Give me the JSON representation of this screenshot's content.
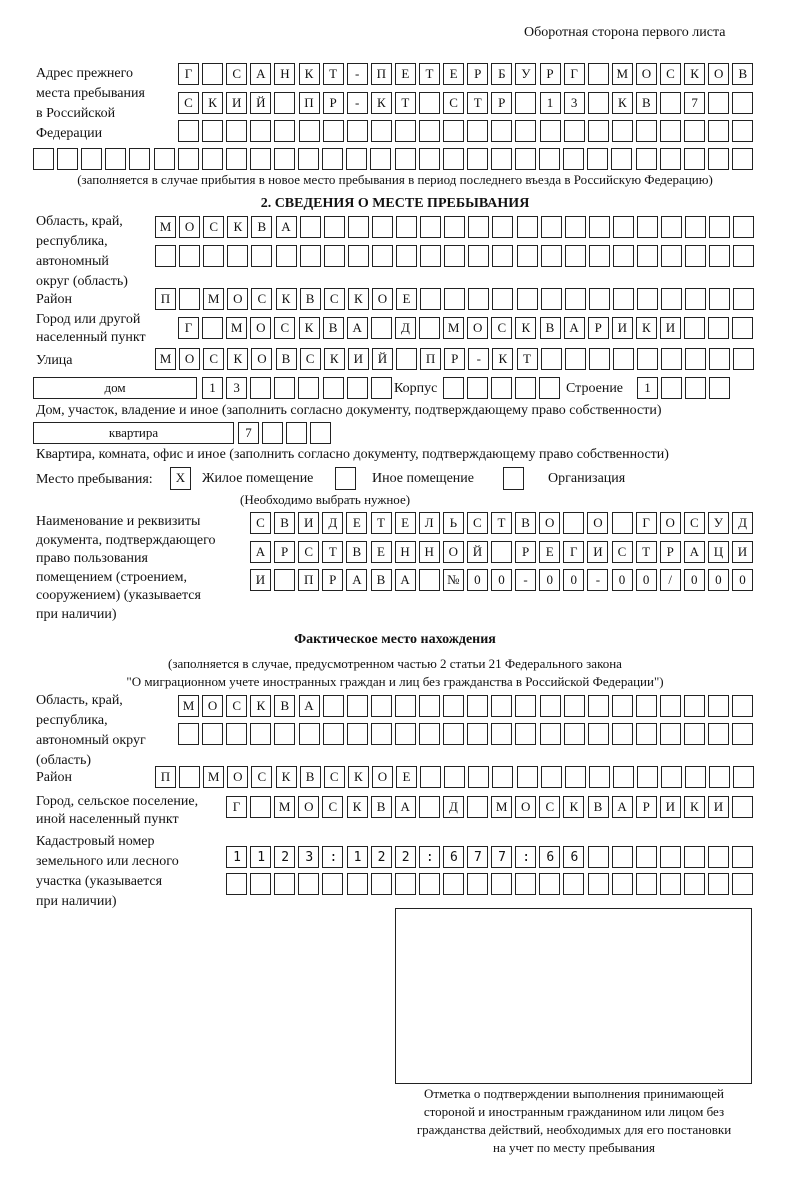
{
  "header": {
    "side_label": "Оборотная сторона первого листа"
  },
  "prev_address": {
    "label": [
      "Адрес прежнего",
      "места пребывания",
      "в Российской",
      "Федерации"
    ],
    "rows": [
      "Г САНКТ-ПЕТЕРБУРГ МОСКОВ",
      "СКИЙ ПР-КТ СТР 13 КВ 7",
      "",
      ""
    ],
    "note": "(заполняется в случае прибытия в новое место пребывания в период последнего въезда в Российскую Федерацию)"
  },
  "section2": {
    "title": "2. СВЕДЕНИЯ О МЕСТЕ ПРЕБЫВАНИЯ",
    "region_label": [
      "Область, край,",
      "республика,",
      "автономный",
      "округ (область)"
    ],
    "region_rows": [
      "МОСКВА",
      ""
    ],
    "district_label": "Район",
    "district": "П МОСКВСКОЕ",
    "city_label": [
      "Город или другой",
      "населенный пункт"
    ],
    "city": "Г МОСКВА Д МОСКВАРИКИ",
    "street_label": "Улица",
    "street": "МОСКОВСКИЙ ПР-КТ",
    "house_type": "дом",
    "house": "13",
    "korpus_label": "Корпус",
    "korpus": "",
    "building_label": "Строение",
    "building": "1",
    "house_note": "Дом, участок, владение и иное (заполнить согласно документу, подтверждающему право собственности)",
    "flat_type": "квартира",
    "flat": "7",
    "flat_note": "Квартира, комната, офис и иное (заполнить согласно документу, подтверждающему право собственности)",
    "stay_label": "Место пребывания:",
    "stay_options": [
      {
        "label": "Жилое помещение",
        "mark": "X"
      },
      {
        "label": "Иное помещение",
        "mark": ""
      },
      {
        "label": "Организация",
        "mark": ""
      }
    ],
    "stay_note": "(Необходимо выбрать нужное)",
    "doc_label": [
      "Наименование и реквизиты",
      "документа, подтверждающего",
      "право пользования",
      "помещением (строением,",
      "сооружением) (указывается",
      "при наличии)"
    ],
    "doc_rows": [
      "СВИДЕТЕЛЬСТВО О ГОСУД",
      "АРСТВЕННОЙ РЕГИСТРАЦИ",
      "И ПРАВА №00-00-00/000"
    ]
  },
  "actual": {
    "title": "Фактическое место нахождения",
    "note": [
      "(заполняется в случае, предусмотренном частью 2 статьи 21 Федерального закона",
      "\"О миграционном учете иностранных граждан и лиц без гражданства в Российской Федерации\")"
    ],
    "region_label": [
      "Область, край,",
      "республика,",
      "автономный округ",
      "(область)"
    ],
    "region_rows": [
      "МОСКВА",
      ""
    ],
    "district_label": "Район",
    "district": "П МОСКВСКОЕ",
    "city_label": [
      "Город, сельское поселение,",
      "иной населенный пункт"
    ],
    "city": "Г МОСКВА Д МОСКВАРИКИ",
    "cadastral_label": [
      "Кадастровый номер",
      "земельного или лесного",
      "участка (указывается",
      "при наличии)"
    ],
    "cadastral_rows": [
      "1123:122:677:66",
      ""
    ]
  },
  "confirmation": {
    "caption": [
      "Отметка о подтверждении выполнения принимающей",
      "стороной и иностранным гражданином или лицом без",
      "гражданства действий, необходимых для его постановки",
      "на учет по месту пребывания"
    ]
  }
}
